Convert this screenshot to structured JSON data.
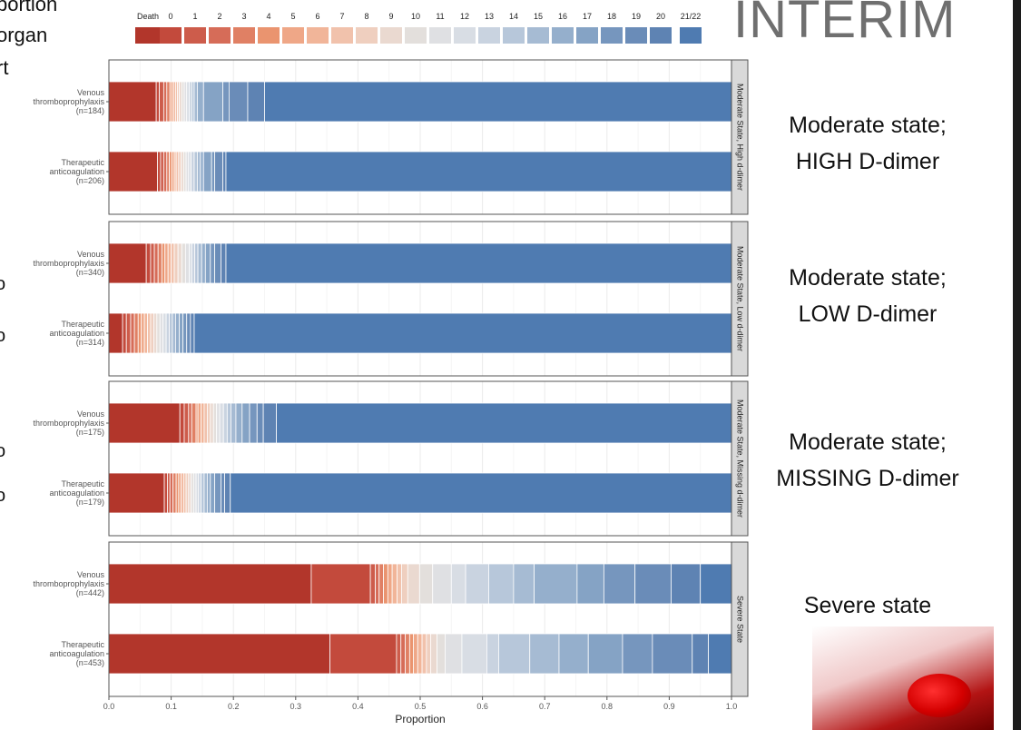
{
  "page_text": {
    "left_fragments": [
      "portion",
      "organ",
      "rt"
    ],
    "stamp": "INTERIM",
    "panel_descriptions": [
      [
        "Moderate state;",
        "HIGH  D-dimer"
      ],
      [
        "Moderate state;",
        "LOW  D-dimer"
      ],
      [
        "Moderate state;",
        "MISSING  D-dimer"
      ],
      [
        "Severe state"
      ]
    ],
    "margin_marks": [
      "o",
      "o",
      "o",
      "o"
    ]
  },
  "chart_data": {
    "type": "bar",
    "stacked": "horizontal-proportion",
    "title": "",
    "xlabel": "Proportion",
    "ylabel": "",
    "xlim": [
      0,
      1
    ],
    "xticks": [
      "0.0",
      "0.1",
      "0.2",
      "0.3",
      "0.4",
      "0.5",
      "0.6",
      "0.7",
      "0.8",
      "0.9",
      "1.0"
    ],
    "grid": true,
    "legend_position": "top",
    "categories": [
      "Death",
      "0",
      "1",
      "2",
      "3",
      "4",
      "5",
      "6",
      "7",
      "8",
      "9",
      "10",
      "11",
      "12",
      "13",
      "14",
      "15",
      "16",
      "17",
      "18",
      "19",
      "20",
      "21/22"
    ],
    "colors": [
      "#b2362b",
      "#c34a3c",
      "#cd5c4b",
      "#d66c58",
      "#e08064",
      "#ea946f",
      "#efa787",
      "#f1b599",
      "#f1c2ac",
      "#efcfbf",
      "#ead9d0",
      "#e3dfdc",
      "#dfe0e3",
      "#d8dde4",
      "#c9d3e0",
      "#b7c7da",
      "#a6bbd3",
      "#95afcc",
      "#85a3c5",
      "#7696be",
      "#6a8cb8",
      "#5e83b3",
      "#4f7bb1"
    ],
    "panels": [
      {
        "strip": "Moderate State, High d-dimer",
        "rows": [
          {
            "label": [
              "Venous",
              "thromboprophylaxis",
              "(n=184)"
            ],
            "cumulative": [
              0.076,
              0.081,
              0.088,
              0.093,
              0.098,
              0.101,
              0.104,
              0.107,
              0.11,
              0.113,
              0.117,
              0.121,
              0.125,
              0.129,
              0.133,
              0.137,
              0.142,
              0.152,
              0.183,
              0.193,
              0.223,
              0.25,
              1.0
            ]
          },
          {
            "label": [
              "Therapeutic",
              "anticoagulation",
              "(n=206)"
            ],
            "cumulative": [
              0.078,
              0.083,
              0.088,
              0.093,
              0.097,
              0.101,
              0.105,
              0.108,
              0.112,
              0.116,
              0.12,
              0.124,
              0.128,
              0.132,
              0.137,
              0.142,
              0.147,
              0.152,
              0.165,
              0.17,
              0.183,
              0.188,
              1.0
            ]
          }
        ]
      },
      {
        "strip": "Moderate State, Low d-dimer",
        "rows": [
          {
            "label": [
              "Venous",
              "thromboprophylaxis",
              "(n=340)"
            ],
            "cumulative": [
              0.06,
              0.067,
              0.073,
              0.079,
              0.085,
              0.09,
              0.095,
              0.1,
              0.105,
              0.111,
              0.117,
              0.123,
              0.129,
              0.133,
              0.138,
              0.143,
              0.149,
              0.155,
              0.163,
              0.17,
              0.18,
              0.188,
              1.0
            ]
          },
          {
            "label": [
              "Therapeutic",
              "anticoagulation",
              "(n=314)"
            ],
            "cumulative": [
              0.022,
              0.028,
              0.035,
              0.041,
              0.047,
              0.052,
              0.057,
              0.062,
              0.067,
              0.072,
              0.077,
              0.082,
              0.087,
              0.092,
              0.097,
              0.102,
              0.107,
              0.113,
              0.119,
              0.125,
              0.131,
              0.137,
              1.0
            ]
          }
        ]
      },
      {
        "strip": "Moderate State, Missing d-dimer",
        "rows": [
          {
            "label": [
              "Venous",
              "thromboprophylaxis",
              "(n=175)"
            ],
            "cumulative": [
              0.114,
              0.121,
              0.128,
              0.133,
              0.14,
              0.143,
              0.148,
              0.153,
              0.158,
              0.163,
              0.168,
              0.173,
              0.178,
              0.184,
              0.19,
              0.196,
              0.204,
              0.214,
              0.226,
              0.238,
              0.248,
              0.269,
              1.0
            ]
          },
          {
            "label": [
              "Therapeutic",
              "anticoagulation",
              "(n=179)"
            ],
            "cumulative": [
              0.089,
              0.094,
              0.098,
              0.103,
              0.108,
              0.112,
              0.116,
              0.12,
              0.124,
              0.128,
              0.132,
              0.136,
              0.14,
              0.144,
              0.148,
              0.153,
              0.158,
              0.163,
              0.17,
              0.18,
              0.186,
              0.195,
              1.0
            ]
          }
        ]
      },
      {
        "strip": "Severe State",
        "rows": [
          {
            "label": [
              "Venous",
              "thromboprophylaxis",
              "(n=442)"
            ],
            "cumulative": [
              0.325,
              0.42,
              0.428,
              0.434,
              0.441,
              0.448,
              0.455,
              0.463,
              0.47,
              0.48,
              0.499,
              0.52,
              0.55,
              0.573,
              0.61,
              0.65,
              0.683,
              0.752,
              0.795,
              0.845,
              0.903,
              0.95,
              1.0
            ]
          },
          {
            "label": [
              "Therapeutic",
              "anticoagulation",
              "(n=453)"
            ],
            "cumulative": [
              0.355,
              0.462,
              0.469,
              0.476,
              0.483,
              0.489,
              0.496,
              0.503,
              0.51,
              0.517,
              0.527,
              0.54,
              0.567,
              0.607,
              0.626,
              0.676,
              0.723,
              0.77,
              0.825,
              0.873,
              0.937,
              0.963,
              1.0
            ]
          }
        ]
      }
    ]
  }
}
